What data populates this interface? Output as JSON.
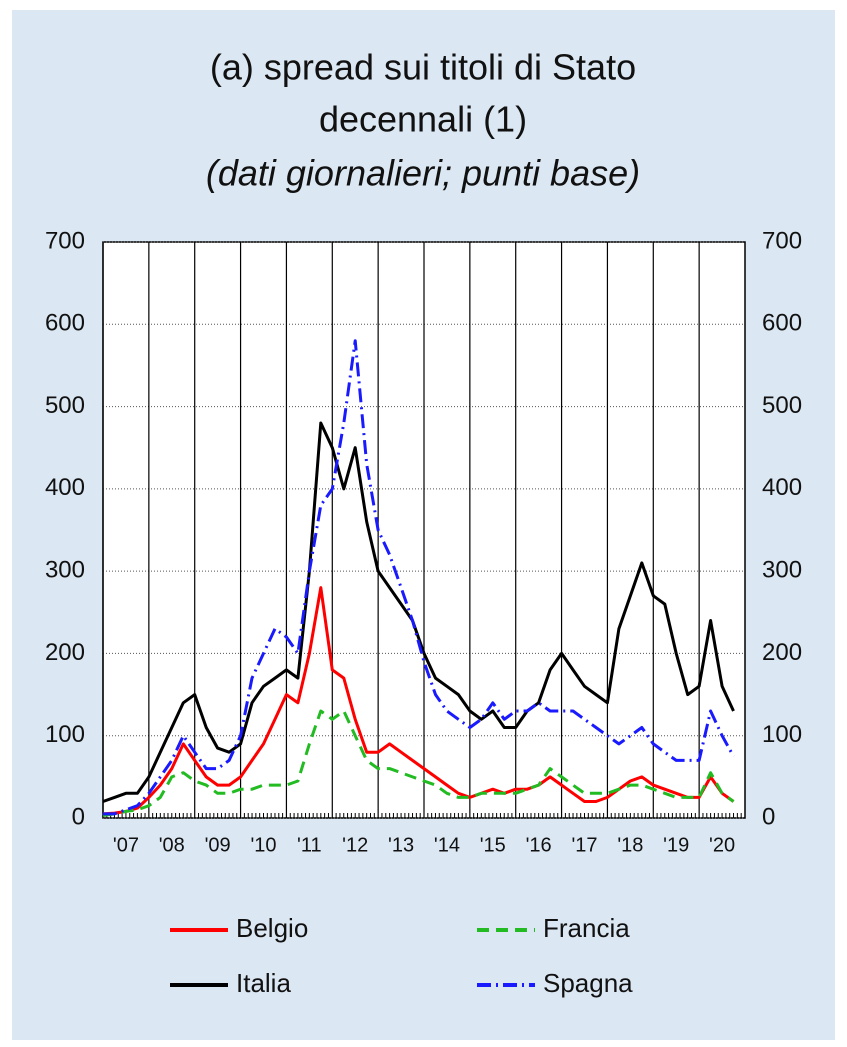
{
  "chart_data": {
    "type": "line",
    "title": [
      "(a) spread sui titoli di Stato",
      "decennali (1)"
    ],
    "subtitle": "(dati giornalieri; punti base)",
    "x": [
      2007,
      2007.25,
      2007.5,
      2007.75,
      2008,
      2008.25,
      2008.5,
      2008.75,
      2009,
      2009.25,
      2009.5,
      2009.75,
      2010,
      2010.25,
      2010.5,
      2010.75,
      2011,
      2011.25,
      2011.5,
      2011.75,
      2012,
      2012.25,
      2012.5,
      2012.75,
      2013,
      2013.25,
      2013.5,
      2013.75,
      2014,
      2014.25,
      2014.5,
      2014.75,
      2015,
      2015.25,
      2015.5,
      2015.75,
      2016,
      2016.25,
      2016.5,
      2016.75,
      2017,
      2017.25,
      2017.5,
      2017.75,
      2018,
      2018.25,
      2018.5,
      2018.75,
      2019,
      2019.25,
      2019.5,
      2019.75,
      2020,
      2020.25,
      2020.5,
      2020.75
    ],
    "series": [
      {
        "name": "Belgio",
        "color": "#ff0000",
        "style": "solid",
        "values": [
          5,
          6,
          8,
          12,
          25,
          40,
          60,
          90,
          70,
          50,
          40,
          40,
          50,
          70,
          90,
          120,
          150,
          140,
          200,
          280,
          180,
          170,
          120,
          80,
          80,
          90,
          80,
          70,
          60,
          50,
          40,
          30,
          25,
          30,
          35,
          30,
          35,
          35,
          40,
          50,
          40,
          30,
          20,
          20,
          25,
          35,
          45,
          50,
          40,
          35,
          30,
          25,
          25,
          50,
          30,
          20
        ]
      },
      {
        "name": "Francia",
        "color": "#22bb22",
        "style": "dashed",
        "values": [
          3,
          5,
          8,
          10,
          15,
          25,
          50,
          55,
          45,
          40,
          30,
          30,
          35,
          35,
          40,
          40,
          40,
          45,
          90,
          130,
          120,
          130,
          100,
          70,
          60,
          60,
          55,
          50,
          45,
          40,
          30,
          25,
          25,
          30,
          30,
          30,
          30,
          35,
          40,
          60,
          50,
          40,
          30,
          30,
          30,
          35,
          40,
          40,
          35,
          30,
          25,
          25,
          25,
          55,
          30,
          20
        ]
      },
      {
        "name": "Italia",
        "color": "#000000",
        "style": "solid",
        "values": [
          20,
          25,
          30,
          30,
          50,
          80,
          110,
          140,
          150,
          110,
          85,
          80,
          90,
          140,
          160,
          170,
          180,
          170,
          300,
          480,
          450,
          400,
          450,
          360,
          300,
          280,
          260,
          240,
          200,
          170,
          160,
          150,
          130,
          120,
          130,
          110,
          110,
          130,
          140,
          180,
          200,
          180,
          160,
          150,
          140,
          230,
          270,
          310,
          270,
          260,
          200,
          150,
          160,
          240,
          160,
          130
        ]
      },
      {
        "name": "Spagna",
        "color": "#1a1aff",
        "style": "dashdot",
        "values": [
          5,
          5,
          10,
          15,
          30,
          50,
          70,
          100,
          80,
          60,
          60,
          70,
          100,
          170,
          200,
          230,
          220,
          200,
          300,
          380,
          400,
          480,
          580,
          430,
          350,
          320,
          280,
          240,
          190,
          150,
          130,
          120,
          110,
          120,
          140,
          120,
          130,
          130,
          140,
          130,
          130,
          130,
          120,
          110,
          100,
          90,
          100,
          110,
          90,
          80,
          70,
          70,
          70,
          130,
          100,
          75
        ]
      }
    ],
    "xlim": [
      2007,
      2021
    ],
    "xticks": [
      {
        "value": 2007,
        "label": "'07"
      },
      {
        "value": 2008,
        "label": "'08"
      },
      {
        "value": 2009,
        "label": "'09"
      },
      {
        "value": 2010,
        "label": "'10"
      },
      {
        "value": 2011,
        "label": "'11"
      },
      {
        "value": 2012,
        "label": "'12"
      },
      {
        "value": 2013,
        "label": "'13"
      },
      {
        "value": 2014,
        "label": "'14"
      },
      {
        "value": 2015,
        "label": "'15"
      },
      {
        "value": 2016,
        "label": "'16"
      },
      {
        "value": 2017,
        "label": "'17"
      },
      {
        "value": 2018,
        "label": "'18"
      },
      {
        "value": 2019,
        "label": "'19"
      },
      {
        "value": 2020,
        "label": "'20"
      }
    ],
    "ylim": [
      0,
      700
    ],
    "yticks": [
      0,
      100,
      200,
      300,
      400,
      500,
      600,
      700
    ],
    "y2lim": [
      0,
      700
    ],
    "y2ticks": [
      0,
      100,
      200,
      300,
      400,
      500,
      600,
      700
    ],
    "grid": true
  }
}
